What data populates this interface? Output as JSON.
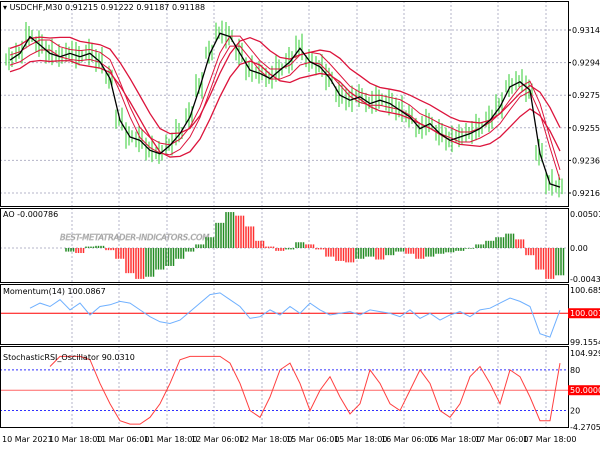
{
  "header": {
    "symbol": "USDCHF,M30",
    "open": "0.91215",
    "high": "0.91222",
    "low": "0.91187",
    "close": "0.91188"
  },
  "watermark": "BEST-METATRADER-INDICATORS.COM",
  "colors": {
    "bull_wick": "#32cd32",
    "band": "#dc143c",
    "price_line": "#000000",
    "ao_up": "#228b22",
    "ao_down": "#ff3030",
    "momentum": "#6fb0ff",
    "stoch": "#ff4040",
    "level": "#ff0000",
    "grid": "#b4b4c8"
  },
  "chart_data": [
    {
      "type": "line",
      "title": "USDCHF,M30",
      "yticks": [
        "0.93140",
        "0.92945",
        "0.92750",
        "0.92555",
        "0.92360",
        "0.92165"
      ],
      "ylim": [
        0.9211,
        0.9331
      ],
      "xticks": [
        "10 Mar 2021",
        "10 Mar 18:00",
        "11 Mar 06:00",
        "11 Mar 18:00",
        "12 Mar 06:00",
        "12 Mar 18:00",
        "15 Mar 06:00",
        "15 Mar 18:00",
        "16 Mar 06:00",
        "16 Mar 18:00",
        "17 Mar 06:00",
        "17 Mar 18:00"
      ],
      "close": [
        0.9296,
        0.93,
        0.931,
        0.9305,
        0.93,
        0.9298,
        0.93,
        0.9298,
        0.93,
        0.9295,
        0.9285,
        0.926,
        0.925,
        0.9248,
        0.9242,
        0.924,
        0.9245,
        0.9252,
        0.9262,
        0.928,
        0.93,
        0.9312,
        0.931,
        0.93,
        0.929,
        0.9288,
        0.9285,
        0.929,
        0.9295,
        0.9303,
        0.9295,
        0.9292,
        0.9285,
        0.9275,
        0.9272,
        0.9274,
        0.927,
        0.9272,
        0.927,
        0.9266,
        0.9262,
        0.9255,
        0.9258,
        0.9252,
        0.9248,
        0.925,
        0.9252,
        0.9255,
        0.926,
        0.9268,
        0.928,
        0.9283,
        0.9278,
        0.924,
        0.9222,
        0.922
      ]
    },
    {
      "type": "bar",
      "title": "AO -0.000786",
      "yticks": [
        "0.00501",
        "0.00",
        "-0.004342"
      ],
      "ylim": [
        -0.004342,
        0.00501
      ],
      "values": [
        null,
        null,
        null,
        null,
        null,
        null,
        -0.0005,
        -0.0007,
        0.0002,
        0.0003,
        -0.0003,
        -0.0015,
        -0.0035,
        -0.0043,
        -0.004,
        -0.003,
        -0.0025,
        -0.0015,
        -0.0005,
        0.0005,
        0.0015,
        0.0035,
        0.005,
        0.0045,
        0.003,
        0.001,
        0.0002,
        -0.0004,
        -0.0002,
        0.0008,
        0.0005,
        -0.0002,
        -0.0012,
        -0.0018,
        -0.002,
        -0.0015,
        -0.0012,
        -0.0016,
        -0.001,
        -0.0005,
        -0.0008,
        -0.0015,
        -0.0012,
        -0.0008,
        -0.0006,
        -0.0004,
        -0.0001,
        0.0005,
        0.001,
        0.0015,
        0.002,
        0.0012,
        -0.001,
        -0.003,
        -0.0043,
        -0.0038
      ]
    },
    {
      "type": "line",
      "title": "Momentum(14) 100.0867",
      "yticks": [
        "100.6852",
        "99.1554"
      ],
      "ylim": [
        99.1554,
        100.6852
      ],
      "level": 100.0013,
      "level_label": "100.0013",
      "values": [
        null,
        null,
        100.15,
        100.3,
        100.2,
        100.4,
        100.1,
        100.3,
        99.95,
        100.2,
        100.25,
        100.35,
        100.3,
        100.1,
        99.9,
        99.75,
        99.7,
        99.8,
        100.05,
        100.3,
        100.55,
        100.6,
        100.4,
        100.2,
        99.85,
        99.9,
        100.1,
        99.95,
        100.2,
        100.0,
        100.3,
        100.1,
        99.95,
        100.0,
        100.05,
        99.95,
        100.1,
        100.05,
        100.0,
        99.9,
        100.1,
        99.85,
        100.0,
        99.8,
        99.95,
        100.05,
        99.9,
        100.1,
        100.15,
        100.3,
        100.45,
        100.35,
        100.2,
        99.4,
        99.3,
        100.09
      ]
    },
    {
      "type": "line",
      "title": "StochasticRSI_Oscillator 90.0310",
      "yticks": [
        "104.9298",
        "80",
        "50.0000",
        "20",
        "-4.2705"
      ],
      "ylim": [
        -4.2705,
        104.9298
      ],
      "levels": [
        80,
        50,
        20
      ],
      "values": [
        null,
        null,
        null,
        null,
        85,
        100,
        100,
        100,
        95,
        60,
        30,
        5,
        0,
        0,
        10,
        30,
        60,
        95,
        100,
        100,
        100,
        100,
        90,
        60,
        20,
        10,
        40,
        80,
        90,
        60,
        20,
        50,
        70,
        40,
        15,
        30,
        80,
        60,
        30,
        20,
        50,
        80,
        60,
        20,
        10,
        30,
        70,
        85,
        60,
        30,
        80,
        70,
        40,
        5,
        5,
        90
      ]
    }
  ]
}
